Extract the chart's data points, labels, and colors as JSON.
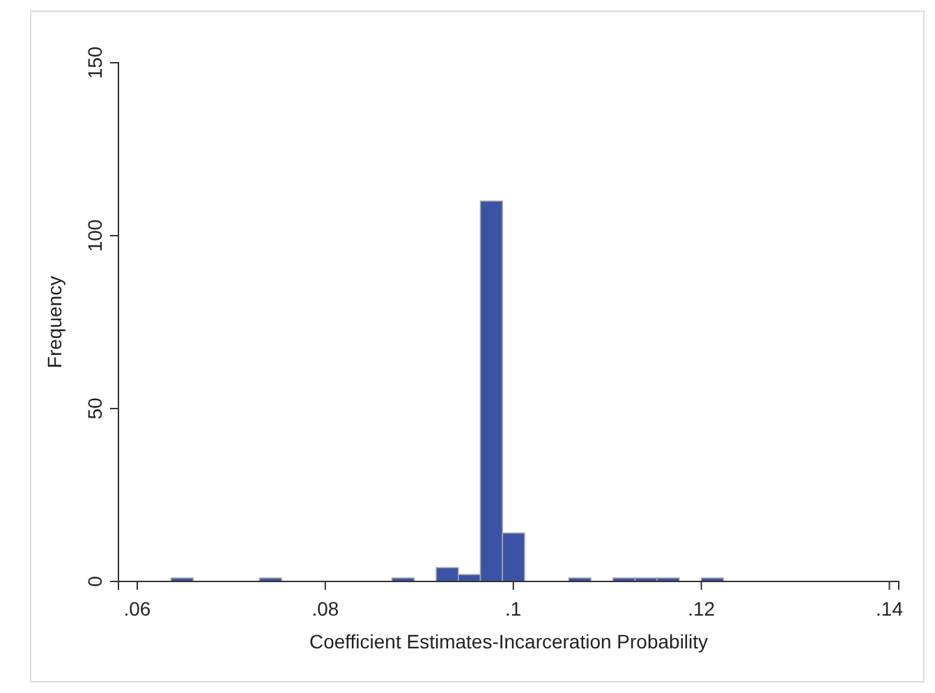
{
  "chart_data": {
    "type": "histogram",
    "xlabel": "Coefficient Estimates-Incarceration Probability",
    "ylabel": "Frequency",
    "bins": [
      0.0636,
      0.06595,
      0.0683,
      0.07065,
      0.073,
      0.07535,
      0.0777,
      0.08005,
      0.0824,
      0.08475,
      0.0871,
      0.08945,
      0.0918,
      0.09415,
      0.0965,
      0.09885,
      0.1012,
      0.10355,
      0.1059,
      0.10825,
      0.1106,
      0.11295,
      0.1153,
      0.11765,
      0.12,
      0.12235
    ],
    "values": [
      1,
      0,
      0,
      0,
      1,
      0,
      0,
      0,
      0,
      0,
      1,
      0,
      4,
      2,
      110,
      14,
      0,
      0,
      1,
      0,
      1,
      1,
      1,
      0,
      1
    ],
    "color": "#3a53a4",
    "xlim": [
      0.058,
      0.141
    ],
    "ylim": [
      0,
      150
    ],
    "xticks": [
      {
        "value": 0.06,
        "label": ".06"
      },
      {
        "value": 0.08,
        "label": ".08"
      },
      {
        "value": 0.1,
        "label": ".1"
      },
      {
        "value": 0.12,
        "label": ".12"
      },
      {
        "value": 0.14,
        "label": ".14"
      }
    ],
    "yticks": [
      0,
      50,
      100,
      150
    ],
    "grid": false
  }
}
